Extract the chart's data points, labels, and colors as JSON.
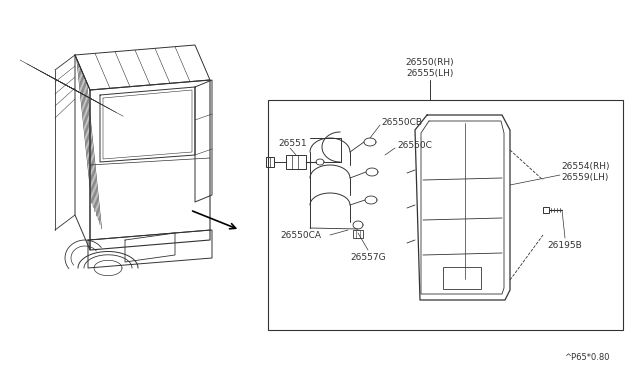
{
  "bg_color": "#ffffff",
  "line_color": "#333333",
  "text_color": "#333333",
  "footer": "^P65*0.80",
  "part_label_main": "26550(RH)\n26555(LH)",
  "part_26551": "26551",
  "part_26550CB": "26550CB",
  "part_26550C": "26550C",
  "part_26554": "26554(RH)\n26559(LH)",
  "part_26550CA": "26550CA",
  "part_26557G": "26557G",
  "part_26195B": "26195B",
  "font_size_label": 6.5,
  "font_size_footer": 6.0
}
